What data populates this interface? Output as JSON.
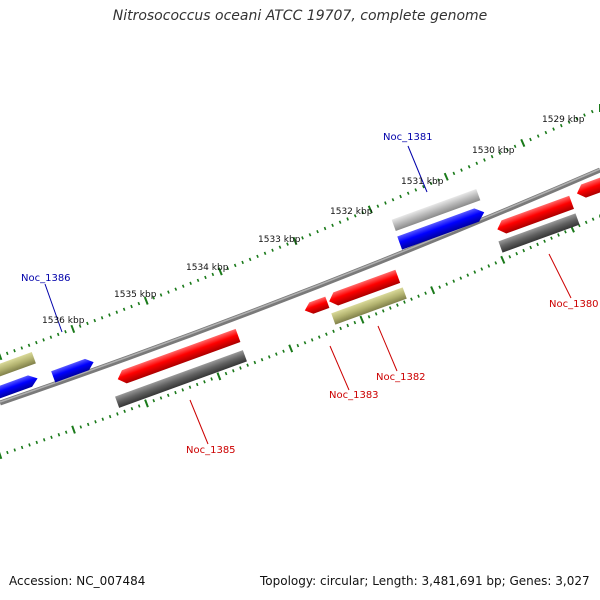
{
  "title": "Nitrosococcus oceani ATCC 19707, complete genome",
  "accession": "Accession: NC_007484",
  "summary": "Topology: circular; Length: 3,481,691 bp; Genes: 3,027",
  "ticks": [
    {
      "label": "1529 kbp"
    },
    {
      "label": "1530 kbp"
    },
    {
      "label": "1531 kbp"
    },
    {
      "label": "1532 kbp"
    },
    {
      "label": "1533 kbp"
    },
    {
      "label": "1534 kbp"
    },
    {
      "label": "1535 kbp"
    },
    {
      "label": "1536 kbp"
    }
  ],
  "genes": {
    "noc1381": {
      "label": "Noc_1381",
      "color": "#0000aa"
    },
    "noc1386": {
      "label": "Noc_1386",
      "color": "#0000aa"
    },
    "noc1380": {
      "label": "Noc_1380",
      "color": "#cc0000"
    },
    "noc1382": {
      "label": "Noc_1382",
      "color": "#cc0000"
    },
    "noc1383": {
      "label": "Noc_1383",
      "color": "#cc0000"
    },
    "noc1385": {
      "label": "Noc_1385",
      "color": "#cc0000"
    }
  },
  "colors": {
    "forward": "#ff0000",
    "reverse": "#0000ff",
    "rna": "#b3b370",
    "pseudo_dark": "#606060",
    "pseudo_light": "#b0b0b0",
    "backbone": "#888888",
    "tick": "#1a7a1a"
  }
}
